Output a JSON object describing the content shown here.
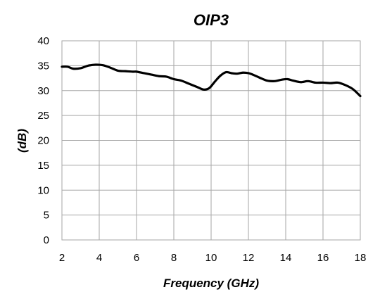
{
  "chart_data": {
    "type": "line",
    "title": "OIP3",
    "xlabel": "Frequency (GHz)",
    "ylabel": "(dB)",
    "xlim": [
      2,
      18
    ],
    "ylim": [
      0,
      40
    ],
    "xticks": [
      2,
      4,
      6,
      8,
      10,
      12,
      14,
      16,
      18
    ],
    "yticks": [
      0,
      5,
      10,
      15,
      20,
      25,
      30,
      35,
      40
    ],
    "grid": true,
    "series": [
      {
        "color": "#000000",
        "x": [
          2.0,
          2.3,
          2.6,
          3.0,
          3.4,
          3.8,
          4.2,
          4.6,
          5.0,
          5.4,
          5.8,
          6.0,
          6.4,
          6.8,
          7.2,
          7.6,
          8.0,
          8.4,
          8.8,
          9.2,
          9.6,
          9.9,
          10.2,
          10.5,
          10.8,
          11.1,
          11.4,
          11.7,
          12.0,
          12.3,
          12.6,
          13.0,
          13.4,
          13.8,
          14.1,
          14.4,
          14.8,
          15.2,
          15.6,
          16.0,
          16.4,
          16.8,
          17.2,
          17.6,
          18.0
        ],
        "values": [
          34.8,
          34.8,
          34.4,
          34.5,
          35.0,
          35.2,
          35.1,
          34.6,
          34.0,
          33.9,
          33.8,
          33.8,
          33.5,
          33.2,
          32.9,
          32.8,
          32.3,
          32.0,
          31.4,
          30.8,
          30.2,
          30.5,
          31.8,
          33.0,
          33.7,
          33.5,
          33.4,
          33.6,
          33.5,
          33.1,
          32.6,
          32.0,
          31.9,
          32.2,
          32.3,
          32.0,
          31.7,
          31.9,
          31.6,
          31.6,
          31.5,
          31.6,
          31.1,
          30.3,
          28.9
        ]
      }
    ]
  }
}
